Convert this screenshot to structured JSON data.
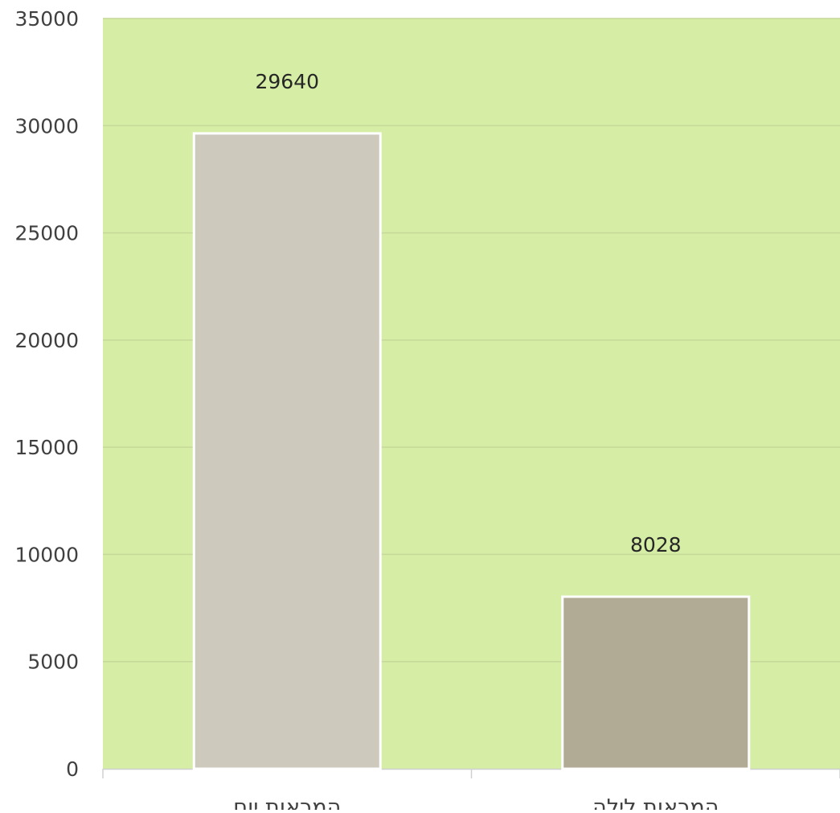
{
  "chart_data": {
    "type": "bar",
    "categories": [
      "המראות יום",
      "המראות לילה"
    ],
    "values": [
      29640,
      8028
    ],
    "data_labels": [
      "29640",
      "8028"
    ],
    "y_ticks": [
      "0",
      "5000",
      "10000",
      "15000",
      "20000",
      "25000",
      "30000",
      "35000"
    ],
    "ylim": [
      0,
      35000
    ],
    "grid": true,
    "legend": "none",
    "colors": {
      "plot_background": "#d5eda4",
      "gridline": "#c6d89a",
      "bar_edge": "#ffffff",
      "axis": "#d0d0d0",
      "bars": [
        "#cdc9bd",
        "#b1aa94"
      ]
    }
  }
}
